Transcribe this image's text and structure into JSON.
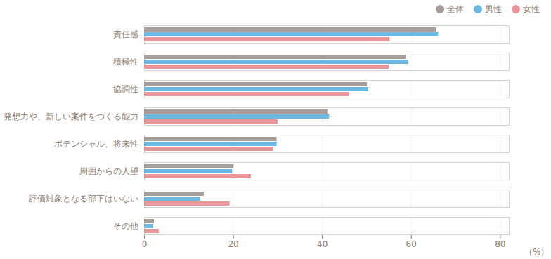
{
  "chart_data": {
    "type": "bar",
    "orientation": "horizontal",
    "categories": [
      "責任感",
      "積極性",
      "協調性",
      "発想力や、新しい案件をつくる能力",
      "ポテンシャル、将来性",
      "周囲からの人望",
      "評価対象となる部下はいない",
      "その他"
    ],
    "series": [
      {
        "name": "全体",
        "color": "#a69e98",
        "values": [
          65.7,
          58.8,
          50.1,
          41.2,
          29.8,
          20.1,
          13.4,
          2.2
        ]
      },
      {
        "name": "男性",
        "color": "#6cb8e0",
        "values": [
          66.1,
          59.4,
          50.4,
          41.6,
          29.8,
          19.8,
          12.6,
          2.0
        ]
      },
      {
        "name": "女性",
        "color": "#e8959c",
        "values": [
          55.2,
          55.0,
          46.0,
          30.0,
          29.0,
          24.0,
          19.2,
          3.3
        ]
      }
    ],
    "xlabel": "（%）",
    "xlim": [
      0,
      82
    ],
    "xticks": [
      0,
      20,
      40,
      60,
      80
    ],
    "grid": true,
    "legend": "top-right"
  }
}
